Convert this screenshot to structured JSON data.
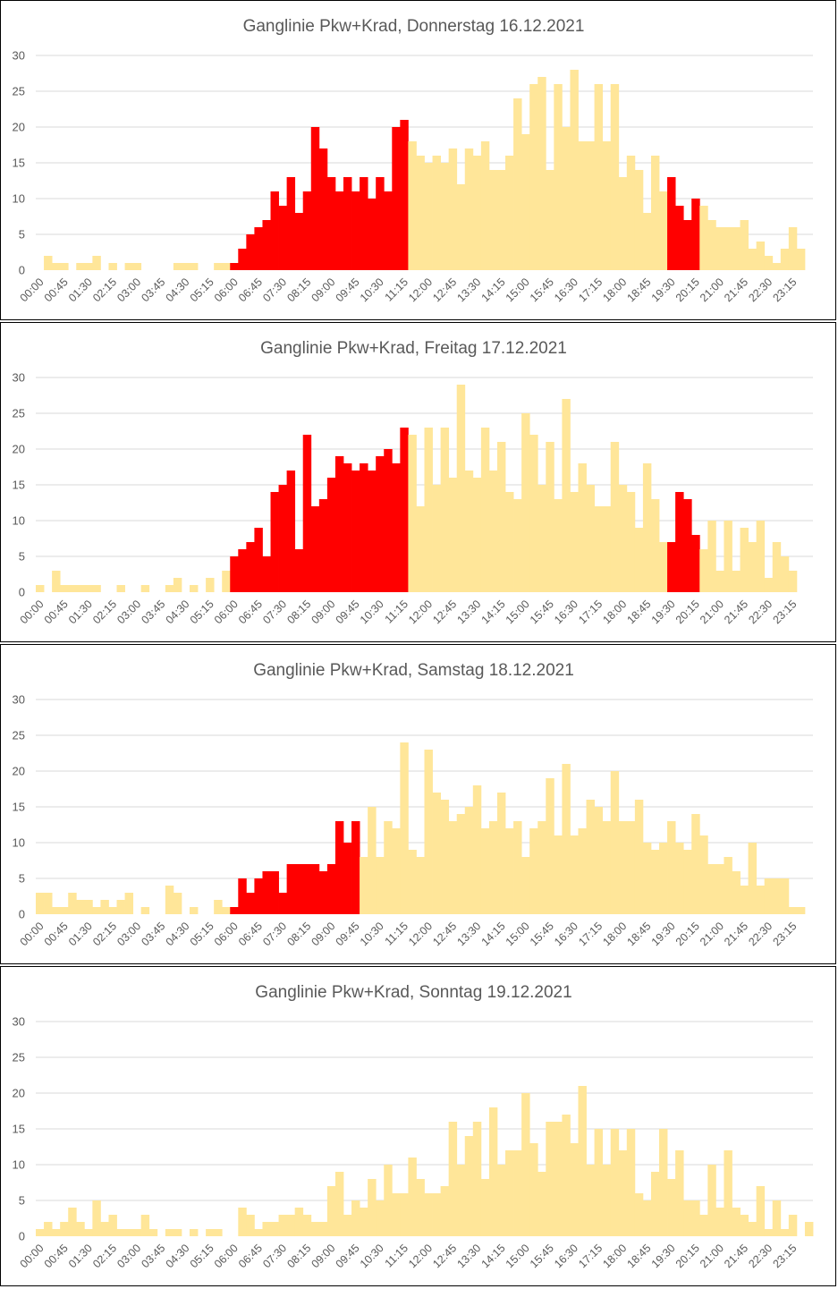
{
  "colors": {
    "peak": "#ff0000",
    "offpeak": "#ffe699",
    "grid": "#d9d9d9",
    "text": "#595959"
  },
  "chart_data": [
    {
      "type": "bar",
      "title": "Ganglinie Pkw+Krad, Donnerstag 16.12.2021",
      "ylim": [
        0,
        30
      ],
      "yticks": [
        0,
        5,
        10,
        15,
        20,
        25,
        30
      ],
      "xtick_labels": [
        "00:00",
        "00:45",
        "01:30",
        "02:15",
        "03:00",
        "03:45",
        "04:30",
        "05:15",
        "06:00",
        "06:45",
        "07:30",
        "08:15",
        "09:00",
        "09:45",
        "10:30",
        "11:15",
        "12:00",
        "12:45",
        "13:30",
        "14:15",
        "15:00",
        "15:45",
        "16:30",
        "17:15",
        "18:00",
        "18:45",
        "19:30",
        "20:15",
        "21:00",
        "21:45",
        "22:30",
        "23:15"
      ],
      "interval_minutes": 15,
      "peak_periods": [
        [
          24,
          46
        ],
        [
          78,
          82
        ]
      ],
      "values": [
        0,
        2,
        1,
        1,
        0,
        1,
        1,
        2,
        0,
        1,
        0,
        1,
        1,
        0,
        0,
        0,
        0,
        1,
        1,
        1,
        0,
        0,
        1,
        1,
        1,
        3,
        5,
        6,
        7,
        11,
        9,
        13,
        8,
        11,
        20,
        17,
        13,
        11,
        13,
        11,
        13,
        10,
        13,
        11,
        20,
        21,
        18,
        16,
        15,
        16,
        15,
        17,
        12,
        17,
        16,
        18,
        14,
        14,
        16,
        24,
        19,
        26,
        27,
        14,
        26,
        20,
        28,
        18,
        18,
        26,
        18,
        26,
        13,
        16,
        14,
        8,
        16,
        11,
        13,
        9,
        7,
        10,
        9,
        7,
        6,
        6,
        6,
        7,
        3,
        4,
        2,
        1,
        3,
        6,
        3,
        0
      ]
    },
    {
      "type": "bar",
      "title": "Ganglinie Pkw+Krad, Freitag 17.12.2021",
      "ylim": [
        0,
        30
      ],
      "yticks": [
        0,
        5,
        10,
        15,
        20,
        25,
        30
      ],
      "xtick_labels": [
        "00:00",
        "00:45",
        "01:30",
        "02:15",
        "03:00",
        "03:45",
        "04:30",
        "05:15",
        "06:00",
        "06:45",
        "07:30",
        "08:15",
        "09:00",
        "09:45",
        "10:30",
        "11:15",
        "12:00",
        "12:45",
        "13:30",
        "14:15",
        "15:00",
        "15:45",
        "16:30",
        "17:15",
        "18:00",
        "18:45",
        "19:30",
        "20:15",
        "21:00",
        "21:45",
        "22:30",
        "23:15"
      ],
      "interval_minutes": 15,
      "peak_periods": [
        [
          24,
          46
        ],
        [
          78,
          82
        ]
      ],
      "values": [
        1,
        0,
        3,
        1,
        1,
        1,
        1,
        1,
        0,
        0,
        1,
        0,
        0,
        1,
        0,
        0,
        1,
        2,
        0,
        1,
        0,
        2,
        0,
        3,
        5,
        6,
        7,
        9,
        5,
        14,
        15,
        17,
        6,
        22,
        12,
        13,
        16,
        19,
        18,
        17,
        18,
        17,
        19,
        20,
        18,
        23,
        22,
        12,
        23,
        15,
        23,
        16,
        29,
        17,
        16,
        23,
        17,
        21,
        14,
        13,
        25,
        22,
        15,
        21,
        13,
        27,
        14,
        18,
        15,
        12,
        12,
        21,
        15,
        14,
        9,
        18,
        13,
        7,
        7,
        14,
        13,
        8,
        6,
        10,
        3,
        10,
        3,
        9,
        7,
        10,
        2,
        7,
        5,
        3,
        0,
        0
      ]
    },
    {
      "type": "bar",
      "title": "Ganglinie Pkw+Krad, Samstag 18.12.2021",
      "ylim": [
        0,
        30
      ],
      "yticks": [
        0,
        5,
        10,
        15,
        20,
        25,
        30
      ],
      "xtick_labels": [
        "00:00",
        "00:45",
        "01:30",
        "02:15",
        "03:00",
        "03:45",
        "04:30",
        "05:15",
        "06:00",
        "06:45",
        "07:30",
        "08:15",
        "09:00",
        "09:45",
        "10:30",
        "11:15",
        "12:00",
        "12:45",
        "13:30",
        "14:15",
        "15:00",
        "15:45",
        "16:30",
        "17:15",
        "18:00",
        "18:45",
        "19:30",
        "20:15",
        "21:00",
        "21:45",
        "22:30",
        "23:15"
      ],
      "interval_minutes": 15,
      "peak_periods": [
        [
          24,
          40
        ]
      ],
      "values": [
        3,
        3,
        1,
        1,
        3,
        2,
        2,
        1,
        2,
        1,
        2,
        3,
        0,
        1,
        0,
        0,
        4,
        3,
        0,
        1,
        0,
        0,
        2,
        1,
        1,
        5,
        3,
        5,
        6,
        6,
        3,
        7,
        7,
        7,
        7,
        6,
        7,
        13,
        10,
        13,
        8,
        15,
        8,
        13,
        12,
        24,
        9,
        8,
        23,
        17,
        16,
        13,
        14,
        15,
        18,
        12,
        13,
        17,
        12,
        13,
        8,
        12,
        13,
        19,
        11,
        21,
        11,
        12,
        16,
        15,
        13,
        20,
        13,
        13,
        16,
        10,
        9,
        10,
        13,
        10,
        9,
        14,
        11,
        7,
        7,
        8,
        6,
        4,
        10,
        4,
        5,
        5,
        5,
        1,
        1,
        0
      ]
    },
    {
      "type": "bar",
      "title": "Ganglinie Pkw+Krad, Sonntag 19.12.2021",
      "ylim": [
        0,
        30
      ],
      "yticks": [
        0,
        5,
        10,
        15,
        20,
        25,
        30
      ],
      "xtick_labels": [
        "00:00",
        "00:45",
        "01:30",
        "02:15",
        "03:00",
        "03:45",
        "04:30",
        "05:15",
        "06:00",
        "06:45",
        "07:30",
        "08:15",
        "09:00",
        "09:45",
        "10:30",
        "11:15",
        "12:00",
        "12:45",
        "13:30",
        "14:15",
        "15:00",
        "15:45",
        "16:30",
        "17:15",
        "18:00",
        "18:45",
        "19:30",
        "20:15",
        "21:00",
        "21:45",
        "22:30",
        "23:15"
      ],
      "interval_minutes": 15,
      "peak_periods": [],
      "values": [
        1,
        2,
        1,
        2,
        4,
        2,
        1,
        5,
        2,
        3,
        1,
        1,
        1,
        3,
        1,
        0,
        1,
        1,
        0,
        1,
        0,
        1,
        1,
        0,
        0,
        4,
        3,
        1,
        2,
        2,
        3,
        3,
        4,
        3,
        2,
        2,
        7,
        9,
        3,
        5,
        4,
        8,
        5,
        10,
        6,
        6,
        11,
        8,
        6,
        6,
        7,
        16,
        10,
        14,
        16,
        8,
        18,
        10,
        12,
        12,
        20,
        13,
        9,
        16,
        16,
        17,
        13,
        21,
        10,
        15,
        10,
        15,
        12,
        15,
        6,
        5,
        9,
        15,
        8,
        12,
        5,
        5,
        3,
        10,
        4,
        12,
        4,
        3,
        2,
        7,
        1,
        5,
        1,
        3,
        0,
        2
      ]
    }
  ]
}
